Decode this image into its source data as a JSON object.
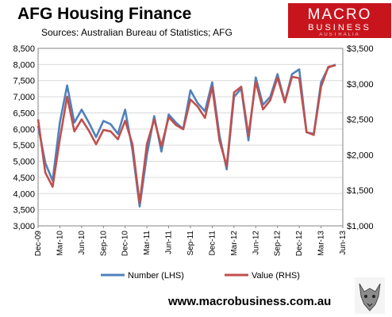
{
  "title": "AFG Housing  Finance",
  "subtitle": "Sources: Australian Bureau of Statistics; AFG",
  "logo": {
    "line1": "MACRO",
    "line2": "BUSINESS",
    "line3": "AUSTRALIA"
  },
  "footer_url": "www.macrobusiness.com.au",
  "chart_data": {
    "type": "line",
    "x_tick_labels": [
      "Dec-09",
      "Mar-10",
      "Jun-10",
      "Sep-10",
      "Dec-10",
      "Mar-11",
      "Jun-11",
      "Sep-11",
      "Dec-11",
      "Mar-12",
      "Jun-12",
      "Sep-12",
      "Dec-12",
      "Mar-13",
      "Jun-13"
    ],
    "y_left": {
      "ylim": [
        3000,
        8500
      ],
      "ticks": [
        "3,000",
        "3,500",
        "4,000",
        "4,500",
        "5,000",
        "5,500",
        "6,000",
        "6,500",
        "7,000",
        "7,500",
        "8,000",
        "8,500"
      ]
    },
    "y_right": {
      "ylim": [
        1000,
        3500
      ],
      "ticks": [
        "$1,000",
        "$1,500",
        "$2,000",
        "$2,500",
        "$3,000",
        "$3,500"
      ]
    },
    "series": [
      {
        "name": "Number (LHS)",
        "axis": "left",
        "color": "#4f81bd",
        "values": [
          6100,
          4950,
          4400,
          6200,
          7350,
          6200,
          6600,
          6200,
          5750,
          6250,
          6150,
          5850,
          6600,
          5350,
          3600,
          5200,
          6400,
          5300,
          6450,
          6200,
          6000,
          7200,
          6800,
          6550,
          7450,
          5800,
          4750,
          7000,
          7250,
          5650,
          7600,
          6750,
          7000,
          7700,
          6850,
          7700,
          7850,
          5900,
          5850,
          7450,
          7900,
          8000
        ]
      },
      {
        "name": "Value (RHS)",
        "axis": "right",
        "color": "#c0504d",
        "values": [
          2500,
          1750,
          1550,
          2220,
          2820,
          2330,
          2500,
          2340,
          2150,
          2350,
          2330,
          2220,
          2480,
          2150,
          1320,
          2150,
          2500,
          2120,
          2530,
          2420,
          2360,
          2780,
          2680,
          2520,
          2960,
          2200,
          1840,
          2880,
          2960,
          2270,
          3030,
          2640,
          2770,
          3090,
          2740,
          3100,
          3080,
          2320,
          2280,
          2960,
          3240,
          3260
        ]
      }
    ],
    "legend": "bottom",
    "grid": "horizontal"
  }
}
